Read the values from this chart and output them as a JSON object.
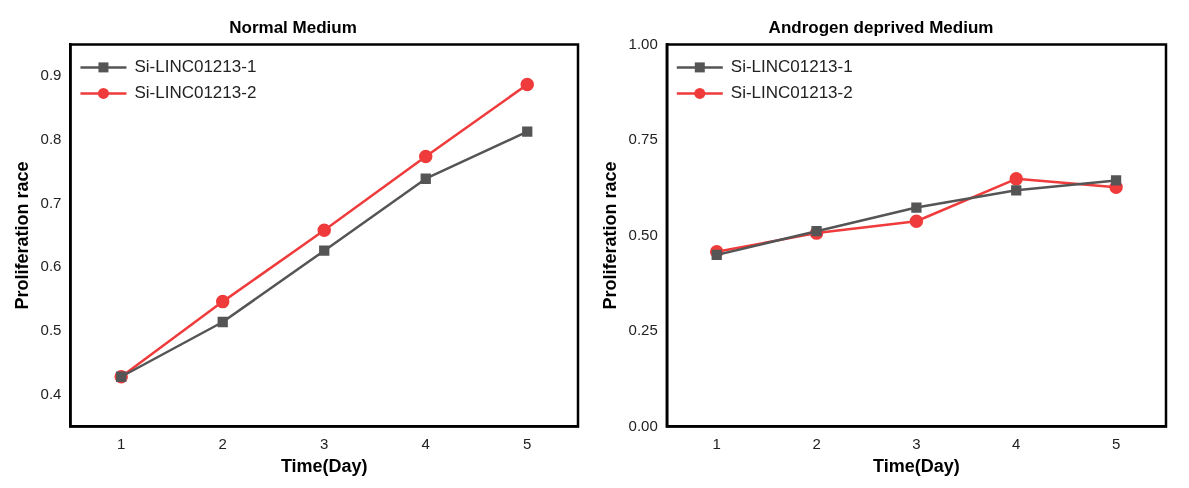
{
  "chart_data": [
    {
      "type": "line",
      "title": "Normal Medium",
      "xlabel": "Time(Day)",
      "ylabel": "Proliferation race",
      "x": [
        1,
        2,
        3,
        4,
        5
      ],
      "xlim": [
        0.5,
        5.5
      ],
      "xticks": [
        1,
        2,
        3,
        4,
        5
      ],
      "ylim": [
        0.35,
        0.95
      ],
      "yticks": [
        0.4,
        0.5,
        0.6,
        0.7,
        0.8,
        0.9
      ],
      "grid": false,
      "legend": "top left",
      "series": [
        {
          "name": "Si-LINC01213-1",
          "color": "#555555",
          "marker": "square",
          "values": [
            0.428,
            0.514,
            0.626,
            0.739,
            0.813
          ]
        },
        {
          "name": "Si-LINC01213-2",
          "color": "#ef3b3b",
          "marker": "circle",
          "values": [
            0.428,
            0.546,
            0.658,
            0.774,
            0.887
          ]
        }
      ]
    },
    {
      "type": "line",
      "title": "Androgen deprived Medium",
      "xlabel": "Time(Day)",
      "ylabel": "Proliferation race",
      "x": [
        1,
        2,
        3,
        4,
        5
      ],
      "xlim": [
        0.5,
        5.5
      ],
      "xticks": [
        1,
        2,
        3,
        4,
        5
      ],
      "ylim": [
        0,
        1
      ],
      "yticks": [
        {
          "value": 0,
          "label": "0.00"
        },
        {
          "value": 0.25,
          "label": "0.25"
        },
        {
          "value": 0.5,
          "label": "0.50"
        },
        {
          "value": 0.75,
          "label": "0.75"
        },
        {
          "value": 1,
          "label": "1.00"
        }
      ],
      "grid": false,
      "legend": "top left",
      "series": [
        {
          "name": "Si-LINC01213-1",
          "color": "#555555",
          "marker": "square",
          "values": [
            0.449,
            0.511,
            0.573,
            0.618,
            0.644
          ]
        },
        {
          "name": "Si-LINC01213-2",
          "color": "#ef3b3b",
          "marker": "circle",
          "values": [
            0.457,
            0.506,
            0.537,
            0.648,
            0.626
          ]
        }
      ]
    }
  ]
}
